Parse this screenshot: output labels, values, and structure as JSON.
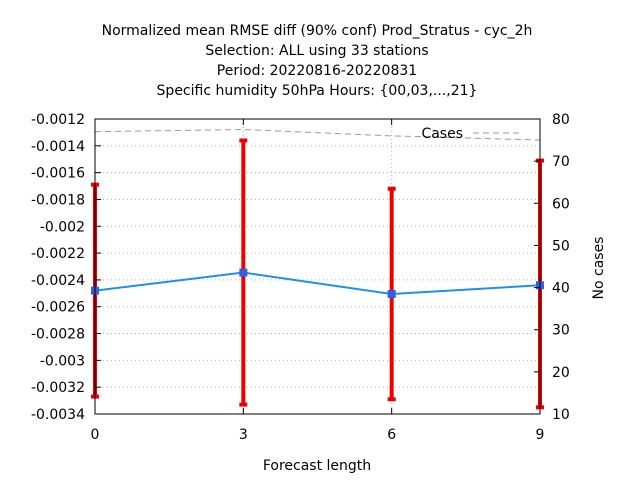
{
  "chart_data": {
    "type": "line",
    "title": [
      "Normalized mean RMSE diff (90% conf) Prod_Stratus - cyc_2h",
      "Selection: ALL using    33 stations",
      "Period: 20220816-20220831",
      "Specific humidity 50hPa   Hours: {00,03,...,21}"
    ],
    "xlabel": "Forecast length",
    "ylabel": "",
    "y2label": "No cases",
    "x": [
      0,
      3,
      6,
      9
    ],
    "xticks": [
      "0",
      "3",
      "6",
      "9"
    ],
    "xlim": [
      0,
      9
    ],
    "ylim": [
      -0.0034,
      -0.0012
    ],
    "yticks": [
      "-0.0012",
      "-0.0014",
      "-0.0016",
      "-0.0018",
      "-0.002",
      "-0.0022",
      "-0.0024",
      "-0.0026",
      "-0.0028",
      "-0.003",
      "-0.0032",
      "-0.0034"
    ],
    "y2lim": [
      10,
      80
    ],
    "y2ticks": [
      "80",
      "70",
      "60",
      "50",
      "40",
      "30",
      "20",
      "10"
    ],
    "grid": true,
    "series": [
      {
        "values": [
          -0.00248,
          -0.002345,
          -0.002505,
          -0.00244
        ],
        "err_low": [
          -0.00327,
          -0.00333,
          -0.00329,
          -0.00335
        ],
        "err_high": [
          -0.00169,
          -0.00136,
          -0.00172,
          -0.00151
        ],
        "color": "#1e90e8",
        "bar_color": "#ee0000"
      }
    ],
    "cases": {
      "name": "Cases",
      "values": [
        77,
        77.5,
        76,
        75
      ],
      "color": "#9a9a9a"
    },
    "legend_position": "top-right"
  }
}
